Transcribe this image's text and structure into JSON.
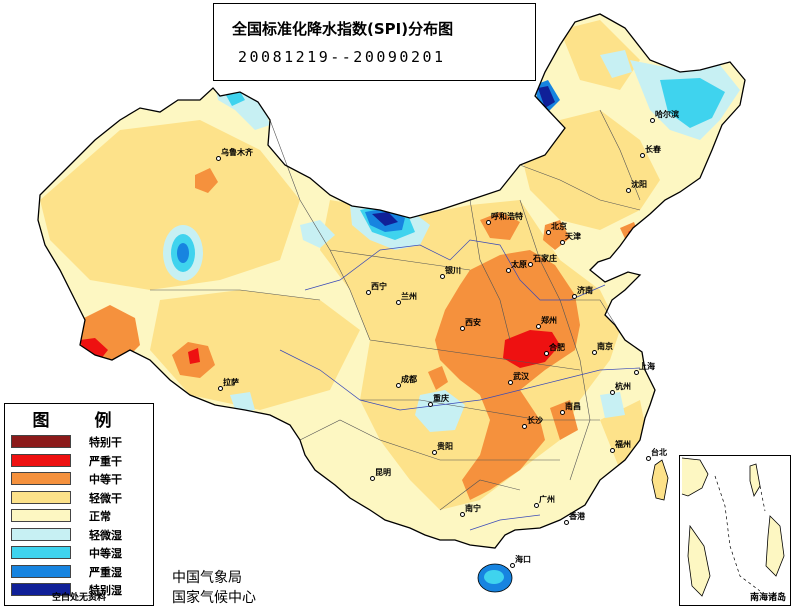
{
  "title": {
    "main": "全国标准化降水指数(SPI)分布图",
    "period": "20081219--20090201"
  },
  "legend": {
    "heading": "图　例",
    "items": [
      {
        "label": "特别干",
        "color": "#8b1a1a"
      },
      {
        "label": "严重干",
        "color": "#ee1111"
      },
      {
        "label": "中等干",
        "color": "#f5913d"
      },
      {
        "label": "轻微干",
        "color": "#fde28a"
      },
      {
        "label": "正常",
        "color": "#fdf7c2"
      },
      {
        "label": "轻微湿",
        "color": "#c7f0f3"
      },
      {
        "label": "中等湿",
        "color": "#3fd3ee"
      },
      {
        "label": "严重湿",
        "color": "#1784e0"
      },
      {
        "label": "特别湿",
        "color": "#102098"
      }
    ],
    "note": "空白处无资料"
  },
  "agency": {
    "line1": "中国气象局",
    "line2": "国家气候中心"
  },
  "inset": {
    "label": "南海诸岛"
  },
  "cities": [
    {
      "name": "乌鲁木齐"
    },
    {
      "name": "哈尔滨"
    },
    {
      "name": "长春"
    },
    {
      "name": "沈阳"
    },
    {
      "name": "呼和浩特"
    },
    {
      "name": "北京"
    },
    {
      "name": "天津"
    },
    {
      "name": "石家庄"
    },
    {
      "name": "太原"
    },
    {
      "name": "银川"
    },
    {
      "name": "济南"
    },
    {
      "name": "西宁"
    },
    {
      "name": "兰州"
    },
    {
      "name": "西安"
    },
    {
      "name": "郑州"
    },
    {
      "name": "合肥"
    },
    {
      "name": "南京"
    },
    {
      "name": "上海"
    },
    {
      "name": "拉萨"
    },
    {
      "name": "成都"
    },
    {
      "name": "武汉"
    },
    {
      "name": "杭州"
    },
    {
      "name": "重庆"
    },
    {
      "name": "南昌"
    },
    {
      "name": "长沙"
    },
    {
      "name": "福州"
    },
    {
      "name": "贵阳"
    },
    {
      "name": "台北"
    },
    {
      "name": "昆明"
    },
    {
      "name": "南宁"
    },
    {
      "name": "广州"
    },
    {
      "name": "香港"
    },
    {
      "name": "海口"
    }
  ]
}
